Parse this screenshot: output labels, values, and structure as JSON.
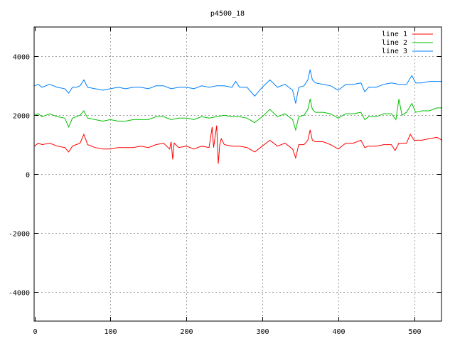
{
  "chart_data": {
    "type": "line",
    "title": "p4500_18",
    "xlabel": "",
    "ylabel": "",
    "xlim": [
      0,
      540
    ],
    "ylim": [
      -5000,
      5000
    ],
    "xticks": [
      0,
      100,
      200,
      300,
      400,
      500
    ],
    "yticks": [
      -4000,
      -2000,
      0,
      2000,
      4000
    ],
    "grid": true,
    "legend": "top-right",
    "series": [
      {
        "name": "line 1",
        "color": "#ff0000",
        "points": [
          [
            0,
            950
          ],
          [
            5,
            1050
          ],
          [
            10,
            1000
          ],
          [
            20,
            1050
          ],
          [
            30,
            950
          ],
          [
            40,
            900
          ],
          [
            45,
            750
          ],
          [
            50,
            950
          ],
          [
            55,
            1000
          ],
          [
            60,
            1050
          ],
          [
            65,
            1350
          ],
          [
            70,
            1000
          ],
          [
            80,
            900
          ],
          [
            90,
            850
          ],
          [
            100,
            850
          ],
          [
            110,
            900
          ],
          [
            120,
            900
          ],
          [
            130,
            900
          ],
          [
            140,
            950
          ],
          [
            150,
            900
          ],
          [
            160,
            1000
          ],
          [
            170,
            1050
          ],
          [
            178,
            850
          ],
          [
            180,
            1100
          ],
          [
            182,
            500
          ],
          [
            184,
            1050
          ],
          [
            190,
            900
          ],
          [
            200,
            950
          ],
          [
            210,
            850
          ],
          [
            220,
            950
          ],
          [
            230,
            900
          ],
          [
            234,
            1600
          ],
          [
            236,
            900
          ],
          [
            238,
            1300
          ],
          [
            240,
            1650
          ],
          [
            242,
            350
          ],
          [
            244,
            1000
          ],
          [
            246,
            1200
          ],
          [
            250,
            1000
          ],
          [
            260,
            950
          ],
          [
            270,
            950
          ],
          [
            280,
            900
          ],
          [
            290,
            750
          ],
          [
            300,
            950
          ],
          [
            310,
            1150
          ],
          [
            320,
            950
          ],
          [
            330,
            1050
          ],
          [
            340,
            850
          ],
          [
            344,
            550
          ],
          [
            348,
            1000
          ],
          [
            355,
            1000
          ],
          [
            360,
            1150
          ],
          [
            363,
            1500
          ],
          [
            366,
            1150
          ],
          [
            370,
            1100
          ],
          [
            380,
            1100
          ],
          [
            390,
            1000
          ],
          [
            400,
            850
          ],
          [
            410,
            1050
          ],
          [
            420,
            1050
          ],
          [
            430,
            1150
          ],
          [
            435,
            900
          ],
          [
            440,
            950
          ],
          [
            450,
            950
          ],
          [
            460,
            1000
          ],
          [
            470,
            1000
          ],
          [
            475,
            800
          ],
          [
            480,
            1050
          ],
          [
            490,
            1050
          ],
          [
            495,
            1350
          ],
          [
            500,
            1150
          ],
          [
            510,
            1150
          ],
          [
            520,
            1200
          ],
          [
            530,
            1250
          ],
          [
            537,
            1150
          ]
        ]
      },
      {
        "name": "line 2",
        "color": "#00c000",
        "points": [
          [
            0,
            2000
          ],
          [
            5,
            2050
          ],
          [
            10,
            1950
          ],
          [
            20,
            2050
          ],
          [
            30,
            1950
          ],
          [
            40,
            1900
          ],
          [
            45,
            1600
          ],
          [
            50,
            1900
          ],
          [
            55,
            1950
          ],
          [
            60,
            2000
          ],
          [
            65,
            2150
          ],
          [
            70,
            1900
          ],
          [
            80,
            1850
          ],
          [
            90,
            1800
          ],
          [
            100,
            1850
          ],
          [
            110,
            1800
          ],
          [
            120,
            1800
          ],
          [
            130,
            1850
          ],
          [
            140,
            1850
          ],
          [
            150,
            1850
          ],
          [
            160,
            1950
          ],
          [
            170,
            1950
          ],
          [
            180,
            1850
          ],
          [
            190,
            1900
          ],
          [
            200,
            1900
          ],
          [
            210,
            1850
          ],
          [
            220,
            1950
          ],
          [
            230,
            1900
          ],
          [
            240,
            1950
          ],
          [
            250,
            2000
          ],
          [
            260,
            1950
          ],
          [
            270,
            1950
          ],
          [
            280,
            1900
          ],
          [
            290,
            1750
          ],
          [
            300,
            1950
          ],
          [
            310,
            2200
          ],
          [
            320,
            1950
          ],
          [
            330,
            2050
          ],
          [
            340,
            1850
          ],
          [
            344,
            1500
          ],
          [
            348,
            1950
          ],
          [
            355,
            2000
          ],
          [
            360,
            2200
          ],
          [
            363,
            2550
          ],
          [
            366,
            2200
          ],
          [
            370,
            2100
          ],
          [
            380,
            2100
          ],
          [
            390,
            2050
          ],
          [
            400,
            1900
          ],
          [
            410,
            2050
          ],
          [
            420,
            2050
          ],
          [
            430,
            2100
          ],
          [
            435,
            1850
          ],
          [
            440,
            1950
          ],
          [
            450,
            1950
          ],
          [
            460,
            2050
          ],
          [
            470,
            2050
          ],
          [
            476,
            1850
          ],
          [
            480,
            2550
          ],
          [
            484,
            2000
          ],
          [
            490,
            2100
          ],
          [
            497,
            2400
          ],
          [
            502,
            2100
          ],
          [
            510,
            2150
          ],
          [
            520,
            2150
          ],
          [
            530,
            2250
          ],
          [
            537,
            2250
          ]
        ]
      },
      {
        "name": "line 3",
        "color": "#0080ff",
        "points": [
          [
            0,
            3000
          ],
          [
            5,
            3050
          ],
          [
            10,
            2950
          ],
          [
            20,
            3050
          ],
          [
            30,
            2950
          ],
          [
            40,
            2900
          ],
          [
            45,
            2750
          ],
          [
            50,
            2950
          ],
          [
            55,
            2950
          ],
          [
            60,
            3000
          ],
          [
            65,
            3200
          ],
          [
            70,
            2950
          ],
          [
            80,
            2900
          ],
          [
            90,
            2850
          ],
          [
            100,
            2900
          ],
          [
            110,
            2950
          ],
          [
            120,
            2900
          ],
          [
            130,
            2950
          ],
          [
            140,
            2950
          ],
          [
            150,
            2900
          ],
          [
            160,
            3000
          ],
          [
            170,
            3000
          ],
          [
            180,
            2900
          ],
          [
            190,
            2950
          ],
          [
            200,
            2950
          ],
          [
            210,
            2900
          ],
          [
            220,
            3000
          ],
          [
            230,
            2950
          ],
          [
            240,
            3000
          ],
          [
            250,
            3000
          ],
          [
            260,
            2950
          ],
          [
            265,
            3150
          ],
          [
            270,
            2950
          ],
          [
            280,
            2950
          ],
          [
            290,
            2650
          ],
          [
            300,
            2950
          ],
          [
            310,
            3200
          ],
          [
            320,
            2950
          ],
          [
            330,
            3050
          ],
          [
            340,
            2850
          ],
          [
            344,
            2400
          ],
          [
            348,
            2950
          ],
          [
            355,
            3000
          ],
          [
            360,
            3200
          ],
          [
            363,
            3550
          ],
          [
            366,
            3200
          ],
          [
            370,
            3100
          ],
          [
            380,
            3050
          ],
          [
            390,
            3000
          ],
          [
            400,
            2850
          ],
          [
            410,
            3050
          ],
          [
            420,
            3050
          ],
          [
            430,
            3100
          ],
          [
            435,
            2800
          ],
          [
            440,
            2950
          ],
          [
            450,
            2950
          ],
          [
            460,
            3050
          ],
          [
            470,
            3100
          ],
          [
            480,
            3050
          ],
          [
            490,
            3050
          ],
          [
            497,
            3350
          ],
          [
            502,
            3100
          ],
          [
            510,
            3100
          ],
          [
            520,
            3150
          ],
          [
            530,
            3150
          ],
          [
            537,
            3150
          ]
        ]
      }
    ]
  }
}
